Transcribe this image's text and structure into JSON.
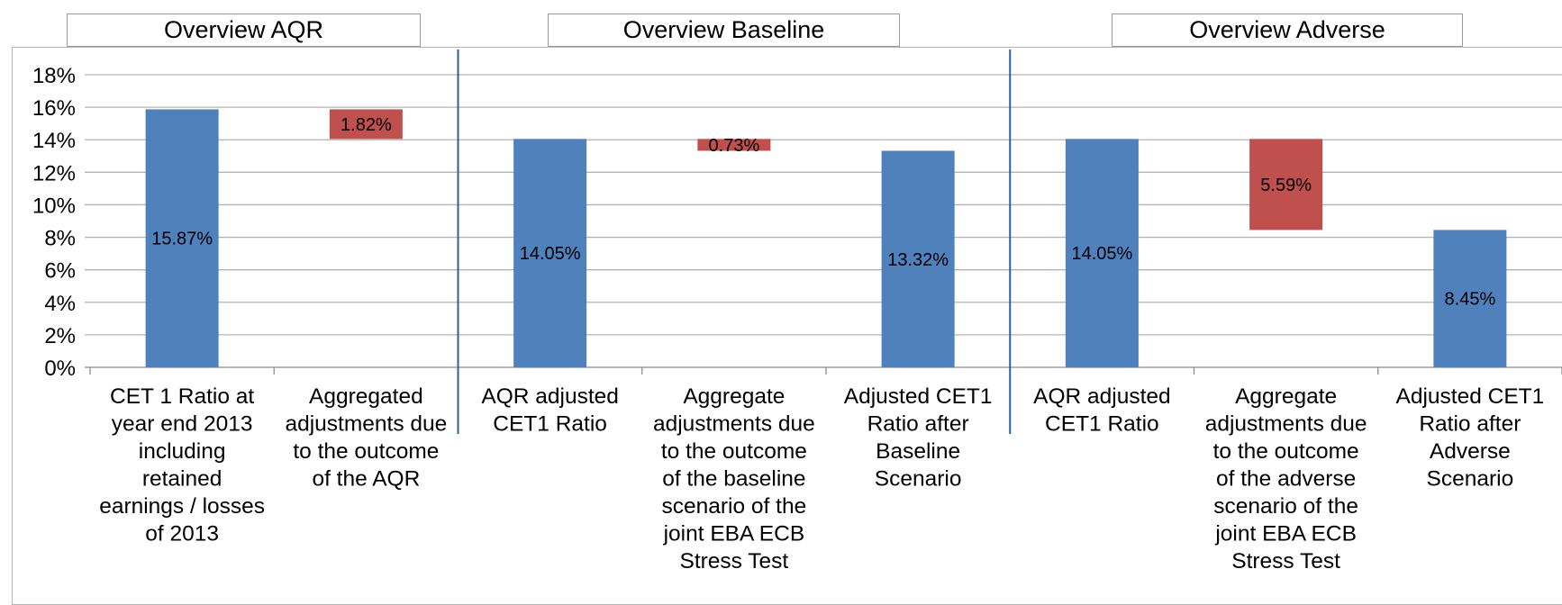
{
  "chart_data": {
    "type": "bar",
    "subtype": "waterfall",
    "panels": [
      {
        "title": "Overview AQR"
      },
      {
        "title": "Overview Baseline"
      },
      {
        "title": "Overview Adverse"
      }
    ],
    "ylim": [
      0,
      18
    ],
    "yticks": [
      "0%",
      "2%",
      "4%",
      "6%",
      "8%",
      "10%",
      "12%",
      "14%",
      "16%",
      "18%"
    ],
    "grid": true,
    "bars": [
      {
        "category": [
          "CET 1 Ratio at",
          "year end 2013",
          "including",
          "retained",
          "earnings / losses",
          "of 2013"
        ],
        "base": 0,
        "top": 15.87,
        "kind": "total",
        "label": "15.87%"
      },
      {
        "category": [
          "Aggregated",
          "adjustments due",
          "to the outcome",
          "of the AQR"
        ],
        "base": 14.05,
        "top": 15.87,
        "kind": "decrease",
        "label": "1.82%"
      },
      {
        "category": [
          "AQR adjusted",
          "CET1 Ratio"
        ],
        "base": 0,
        "top": 14.05,
        "kind": "total",
        "label": "14.05%"
      },
      {
        "category": [
          "Aggregate",
          "adjustments due",
          "to the outcome",
          "of the baseline",
          "scenario of the",
          "joint EBA ECB",
          "Stress Test"
        ],
        "base": 13.32,
        "top": 14.05,
        "kind": "decrease",
        "label": "0.73%"
      },
      {
        "category": [
          "Adjusted CET1",
          "Ratio after",
          "Baseline",
          "Scenario"
        ],
        "base": 0,
        "top": 13.32,
        "kind": "total",
        "label": "13.32%"
      },
      {
        "category": [
          "AQR adjusted",
          "CET1 Ratio"
        ],
        "base": 0,
        "top": 14.05,
        "kind": "total",
        "label": "14.05%"
      },
      {
        "category": [
          "Aggregate",
          "adjustments due",
          "to the outcome",
          "of the adverse",
          "scenario of the",
          "joint EBA ECB",
          "Stress Test"
        ],
        "base": 8.45,
        "top": 14.05,
        "kind": "decrease",
        "label": "5.59%"
      },
      {
        "category": [
          "Adjusted CET1",
          "Ratio after",
          "Adverse",
          "Scenario"
        ],
        "base": 0,
        "top": 8.45,
        "kind": "total",
        "label": "8.45%"
      }
    ],
    "colors": {
      "total": "#4f81bd",
      "decrease": "#c0504d",
      "grid": "#b3b3b3",
      "divider": "#2e5f9e"
    }
  }
}
